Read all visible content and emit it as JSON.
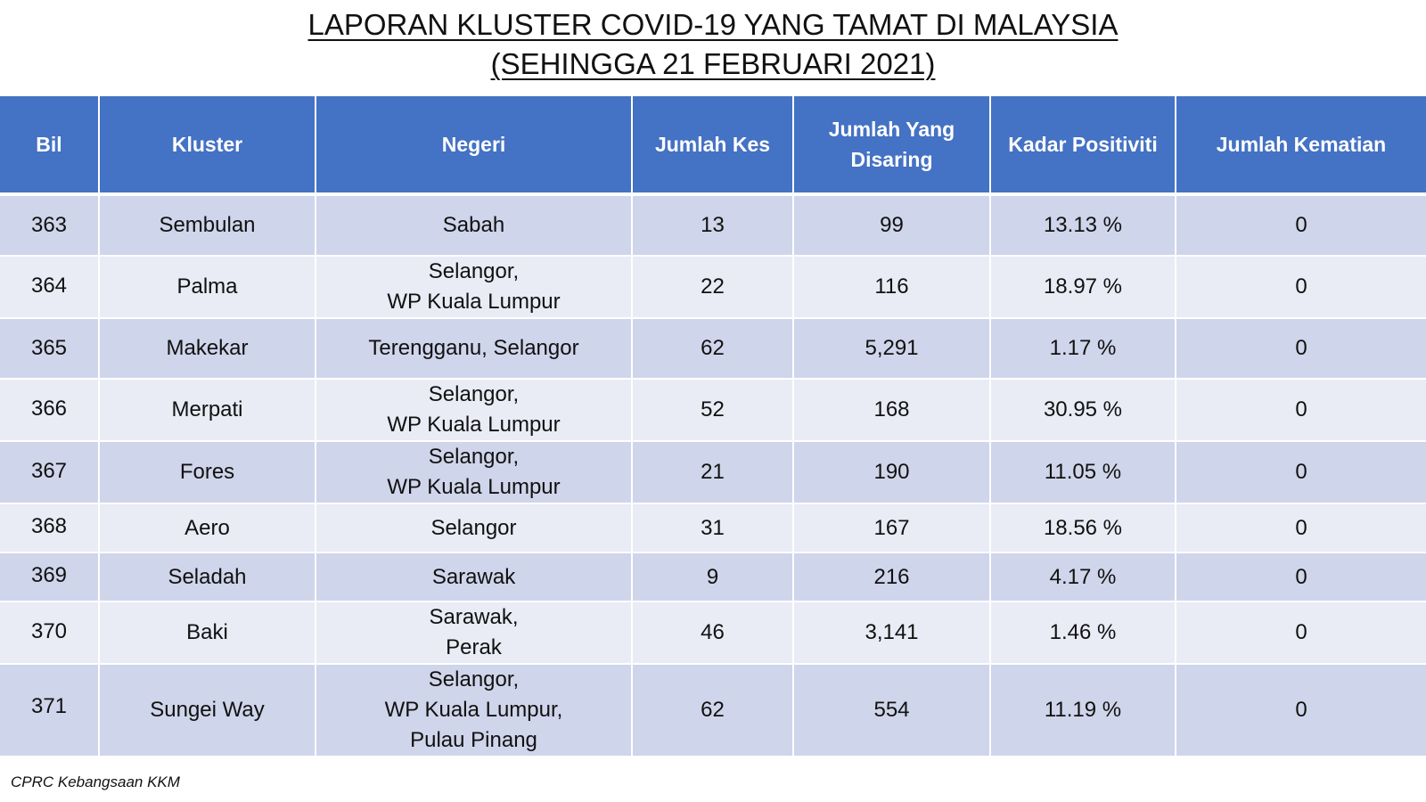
{
  "title": {
    "line1": "LAPORAN KLUSTER COVID-19 YANG TAMAT DI MALAYSIA",
    "line2": "(SEHINGGA 21 FEBRUARI 2021)"
  },
  "table": {
    "headers": {
      "bil": "Bil",
      "kluster": "Kluster",
      "negeri": "Negeri",
      "jumlah_kes": "Jumlah Kes",
      "jumlah_disaring": "Jumlah Yang\nDisaring",
      "kadar_positiviti": "Kadar Positiviti",
      "jumlah_kematian": "Jumlah Kematian"
    },
    "rows": [
      {
        "bil": "363",
        "kluster": "Sembulan",
        "negeri": "Sabah",
        "kes": "13",
        "disaring": "99",
        "positiviti": "13.13 %",
        "kematian": "0"
      },
      {
        "bil": "364",
        "kluster": "Palma",
        "negeri": "Selangor,\nWP Kuala Lumpur",
        "kes": "22",
        "disaring": "116",
        "positiviti": "18.97 %",
        "kematian": "0"
      },
      {
        "bil": "365",
        "kluster": "Makekar",
        "negeri": "Terengganu, Selangor",
        "kes": "62",
        "disaring": "5,291",
        "positiviti": "1.17 %",
        "kematian": "0"
      },
      {
        "bil": "366",
        "kluster": "Merpati",
        "negeri": "Selangor,\nWP Kuala Lumpur",
        "kes": "52",
        "disaring": "168",
        "positiviti": "30.95 %",
        "kematian": "0"
      },
      {
        "bil": "367",
        "kluster": "Fores",
        "negeri": "Selangor,\nWP Kuala Lumpur",
        "kes": "21",
        "disaring": "190",
        "positiviti": "11.05 %",
        "kematian": "0"
      },
      {
        "bil": "368",
        "kluster": "Aero",
        "negeri": "Selangor",
        "kes": "31",
        "disaring": "167",
        "positiviti": "18.56 %",
        "kematian": "0"
      },
      {
        "bil": "369",
        "kluster": "Seladah",
        "negeri": "Sarawak",
        "kes": "9",
        "disaring": "216",
        "positiviti": "4.17 %",
        "kematian": "0"
      },
      {
        "bil": "370",
        "kluster": "Baki",
        "negeri": "Sarawak,\nPerak",
        "kes": "46",
        "disaring": "3,141",
        "positiviti": "1.46 %",
        "kematian": "0"
      },
      {
        "bil": "371",
        "kluster": "Sungei Way",
        "negeri": "Selangor,\nWP Kuala Lumpur,\nPulau Pinang",
        "kes": "62",
        "disaring": "554",
        "positiviti": "11.19 %",
        "kematian": "0"
      }
    ]
  },
  "footer": {
    "source": "CPRC Kebangsaan KKM"
  }
}
